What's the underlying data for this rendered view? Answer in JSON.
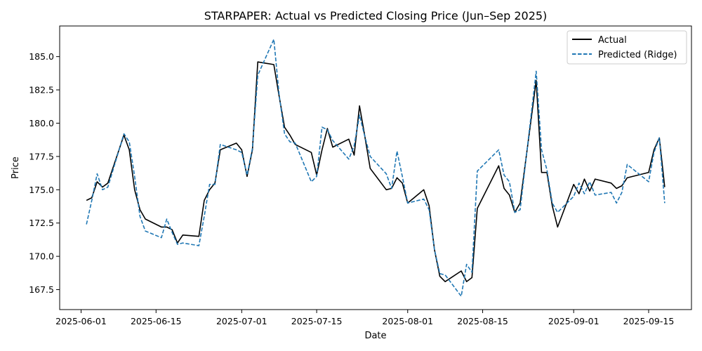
{
  "chart_data": {
    "type": "line",
    "title": "STARPAPER: Actual vs Predicted Closing Price (Jun–Sep 2025)",
    "xlabel": "Date",
    "ylabel": "Price",
    "x_axis": {
      "type": "date",
      "range": [
        "2025-05-28",
        "2025-09-23"
      ],
      "ticks": [
        "2025-06-01",
        "2025-06-15",
        "2025-07-01",
        "2025-07-15",
        "2025-08-01",
        "2025-08-15",
        "2025-09-01",
        "2025-09-15"
      ]
    },
    "y_axis": {
      "range": [
        166.0,
        187.3
      ],
      "ticks": [
        167.5,
        170.0,
        172.5,
        175.0,
        177.5,
        180.0,
        182.5,
        185.0
      ],
      "tick_labels": [
        "167.5",
        "170.0",
        "172.5",
        "175.0",
        "177.5",
        "180.0",
        "182.5",
        "185.0"
      ]
    },
    "grid": false,
    "legend": {
      "position": "top-right",
      "entries": [
        "Actual",
        "Predicted (Ridge)"
      ]
    },
    "series": [
      {
        "name": "Actual",
        "color": "#000000",
        "style": "solid",
        "points": [
          [
            "2025-06-02",
            174.2
          ],
          [
            "2025-06-03",
            174.4
          ],
          [
            "2025-06-04",
            175.6
          ],
          [
            "2025-06-05",
            175.2
          ],
          [
            "2025-06-06",
            175.5
          ],
          [
            "2025-06-09",
            179.1
          ],
          [
            "2025-06-10",
            178.0
          ],
          [
            "2025-06-11",
            175.0
          ],
          [
            "2025-06-12",
            173.5
          ],
          [
            "2025-06-13",
            172.8
          ],
          [
            "2025-06-16",
            172.2
          ],
          [
            "2025-06-17",
            172.2
          ],
          [
            "2025-06-18",
            172.0
          ],
          [
            "2025-06-19",
            171.0
          ],
          [
            "2025-06-20",
            171.6
          ],
          [
            "2025-06-23",
            171.5
          ],
          [
            "2025-06-24",
            174.2
          ],
          [
            "2025-06-25",
            175.0
          ],
          [
            "2025-06-26",
            175.5
          ],
          [
            "2025-06-27",
            178.0
          ],
          [
            "2025-06-30",
            178.5
          ],
          [
            "2025-07-01",
            178.0
          ],
          [
            "2025-07-02",
            176.0
          ],
          [
            "2025-07-03",
            178.0
          ],
          [
            "2025-07-04",
            184.6
          ],
          [
            "2025-07-07",
            184.4
          ],
          [
            "2025-07-08",
            182.0
          ],
          [
            "2025-07-09",
            179.7
          ],
          [
            "2025-07-10",
            179.1
          ],
          [
            "2025-07-11",
            178.4
          ],
          [
            "2025-07-14",
            177.8
          ],
          [
            "2025-07-15",
            176.1
          ],
          [
            "2025-07-16",
            178.0
          ],
          [
            "2025-07-17",
            179.6
          ],
          [
            "2025-07-18",
            178.2
          ],
          [
            "2025-07-21",
            178.8
          ],
          [
            "2025-07-22",
            177.6
          ],
          [
            "2025-07-23",
            181.3
          ],
          [
            "2025-07-24",
            179.0
          ],
          [
            "2025-07-25",
            176.6
          ],
          [
            "2025-07-28",
            175.0
          ],
          [
            "2025-07-29",
            175.1
          ],
          [
            "2025-07-30",
            175.9
          ],
          [
            "2025-07-31",
            175.5
          ],
          [
            "2025-08-01",
            174.0
          ],
          [
            "2025-08-04",
            175.0
          ],
          [
            "2025-08-05",
            173.8
          ],
          [
            "2025-08-06",
            170.5
          ],
          [
            "2025-08-07",
            168.5
          ],
          [
            "2025-08-08",
            168.1
          ],
          [
            "2025-08-11",
            168.9
          ],
          [
            "2025-08-12",
            168.1
          ],
          [
            "2025-08-13",
            168.4
          ],
          [
            "2025-08-14",
            173.6
          ],
          [
            "2025-08-18",
            176.8
          ],
          [
            "2025-08-19",
            175.1
          ],
          [
            "2025-08-20",
            174.6
          ],
          [
            "2025-08-21",
            173.3
          ],
          [
            "2025-08-22",
            174.0
          ],
          [
            "2025-08-25",
            183.2
          ],
          [
            "2025-08-26",
            176.3
          ],
          [
            "2025-08-27",
            176.3
          ],
          [
            "2025-08-28",
            173.8
          ],
          [
            "2025-08-29",
            172.2
          ],
          [
            "2025-09-01",
            175.4
          ],
          [
            "2025-09-02",
            174.7
          ],
          [
            "2025-09-03",
            175.8
          ],
          [
            "2025-09-04",
            174.9
          ],
          [
            "2025-09-05",
            175.8
          ],
          [
            "2025-09-08",
            175.5
          ],
          [
            "2025-09-09",
            175.1
          ],
          [
            "2025-09-10",
            175.3
          ],
          [
            "2025-09-11",
            175.9
          ],
          [
            "2025-09-15",
            176.3
          ],
          [
            "2025-09-16",
            178.0
          ],
          [
            "2025-09-17",
            178.9
          ],
          [
            "2025-09-18",
            175.2
          ]
        ]
      },
      {
        "name": "Predicted (Ridge)",
        "color": "#1f77b4",
        "style": "dashed",
        "points": [
          [
            "2025-06-02",
            172.4
          ],
          [
            "2025-06-03",
            174.2
          ],
          [
            "2025-06-04",
            176.2
          ],
          [
            "2025-06-05",
            175.0
          ],
          [
            "2025-06-06",
            175.2
          ],
          [
            "2025-06-09",
            179.2
          ],
          [
            "2025-06-10",
            178.6
          ],
          [
            "2025-06-11",
            176.0
          ],
          [
            "2025-06-12",
            173.0
          ],
          [
            "2025-06-13",
            171.9
          ],
          [
            "2025-06-16",
            171.4
          ],
          [
            "2025-06-17",
            172.8
          ],
          [
            "2025-06-18",
            171.8
          ],
          [
            "2025-06-19",
            170.9
          ],
          [
            "2025-06-20",
            171.0
          ],
          [
            "2025-06-23",
            170.8
          ],
          [
            "2025-06-24",
            173.0
          ],
          [
            "2025-06-25",
            175.4
          ],
          [
            "2025-06-26",
            175.4
          ],
          [
            "2025-06-27",
            178.4
          ],
          [
            "2025-06-30",
            178.0
          ],
          [
            "2025-07-01",
            177.8
          ],
          [
            "2025-07-02",
            176.1
          ],
          [
            "2025-07-03",
            178.1
          ],
          [
            "2025-07-04",
            183.6
          ],
          [
            "2025-07-07",
            186.3
          ],
          [
            "2025-07-08",
            182.1
          ],
          [
            "2025-07-09",
            179.2
          ],
          [
            "2025-07-10",
            178.6
          ],
          [
            "2025-07-11",
            178.5
          ],
          [
            "2025-07-14",
            175.6
          ],
          [
            "2025-07-15",
            176.0
          ],
          [
            "2025-07-16",
            179.7
          ],
          [
            "2025-07-17",
            179.5
          ],
          [
            "2025-07-18",
            178.7
          ],
          [
            "2025-07-21",
            177.3
          ],
          [
            "2025-07-22",
            178.3
          ],
          [
            "2025-07-23",
            180.6
          ],
          [
            "2025-07-24",
            179.0
          ],
          [
            "2025-07-25",
            177.5
          ],
          [
            "2025-07-28",
            176.2
          ],
          [
            "2025-07-29",
            175.1
          ],
          [
            "2025-07-30",
            177.9
          ],
          [
            "2025-07-31",
            176.0
          ],
          [
            "2025-08-01",
            174.0
          ],
          [
            "2025-08-04",
            174.3
          ],
          [
            "2025-08-05",
            173.5
          ],
          [
            "2025-08-06",
            170.5
          ],
          [
            "2025-08-07",
            168.7
          ],
          [
            "2025-08-08",
            168.6
          ],
          [
            "2025-08-11",
            167.0
          ],
          [
            "2025-08-12",
            169.4
          ],
          [
            "2025-08-13",
            168.8
          ],
          [
            "2025-08-14",
            176.4
          ],
          [
            "2025-08-18",
            178.0
          ],
          [
            "2025-08-19",
            176.1
          ],
          [
            "2025-08-20",
            175.6
          ],
          [
            "2025-08-21",
            173.3
          ],
          [
            "2025-08-22",
            173.5
          ],
          [
            "2025-08-25",
            183.9
          ],
          [
            "2025-08-26",
            178.0
          ],
          [
            "2025-08-27",
            176.5
          ],
          [
            "2025-08-28",
            174.0
          ],
          [
            "2025-08-29",
            173.3
          ],
          [
            "2025-09-01",
            174.5
          ],
          [
            "2025-09-02",
            175.5
          ],
          [
            "2025-09-03",
            174.7
          ],
          [
            "2025-09-04",
            175.6
          ],
          [
            "2025-09-05",
            174.6
          ],
          [
            "2025-09-08",
            174.8
          ],
          [
            "2025-09-09",
            174.0
          ],
          [
            "2025-09-10",
            174.8
          ],
          [
            "2025-09-11",
            176.9
          ],
          [
            "2025-09-15",
            175.6
          ],
          [
            "2025-09-16",
            177.8
          ],
          [
            "2025-09-17",
            178.9
          ],
          [
            "2025-09-18",
            174.0
          ]
        ]
      }
    ]
  }
}
